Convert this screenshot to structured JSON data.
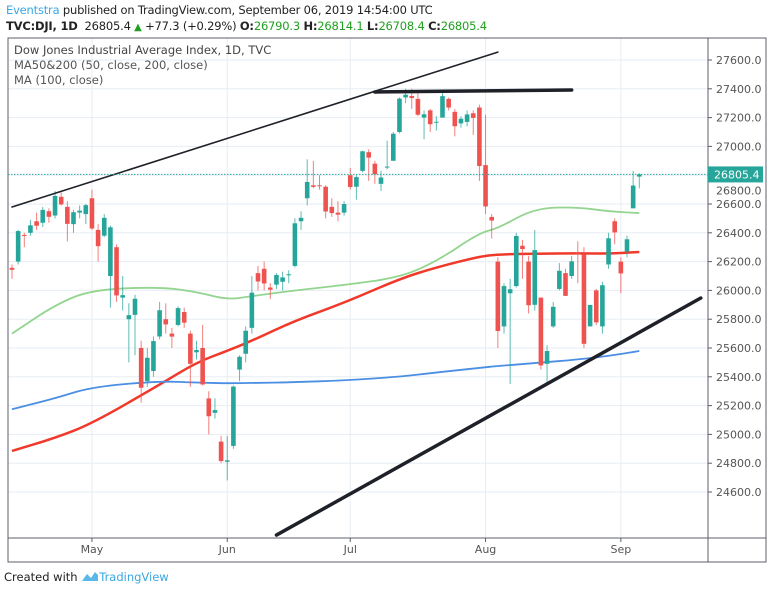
{
  "header": {
    "author": "Eventstra",
    "published": "published on TradingView.com, September 06, 2019 14:54:00 UTC",
    "symbol": "TVC:DJI, 1D",
    "last": "26805.4",
    "change": "+77.3 (+0.29%)",
    "o_label": "O:",
    "o": "26790.3",
    "h_label": "H:",
    "h": "26814.1",
    "l_label": "L:",
    "l": "26708.4",
    "c_label": "C:",
    "c": "26805.4"
  },
  "legend": {
    "title": "Dow Jones Industrial Average Index, 1D, TVC",
    "ma1": "MA50&200 (50, close, 200, close)",
    "ma2": "MA (100, close)"
  },
  "footer": {
    "created": "Created with",
    "brand": "TradingView"
  },
  "colors": {
    "up": "#26a69a",
    "down": "#ef5350",
    "ma50": "#93d48f",
    "ma100": "#f0392b",
    "ma200": "#4a8fe3",
    "drawing": "#1f2128",
    "last_price": "#26a69a",
    "grid": "#e6edf3"
  },
  "chart_data": {
    "type": "candlestick",
    "title": "Dow Jones Industrial Average Index, 1D, TVC",
    "ylim": [
      24600,
      27600
    ],
    "yticks": [
      24600,
      24800,
      25000,
      25200,
      25400,
      25600,
      25800,
      26000,
      26200,
      26400,
      26600,
      26800,
      27000,
      27200,
      27400,
      27600
    ],
    "ytick_labels": [
      "24600.0",
      "24800.0",
      "25000.0",
      "25200.0",
      "25400.0",
      "25600.0",
      "25800.0",
      "26000.0",
      "26200.0",
      "26400.0",
      "26600.0",
      "26800.0",
      "27000.0",
      "27200.0",
      "27400.0",
      "27600.0"
    ],
    "xticks": [
      {
        "label": "May",
        "date": "2019-05-01"
      },
      {
        "label": "Jun",
        "date": "2019-06-03"
      },
      {
        "label": "Jul",
        "date": "2019-07-01"
      },
      {
        "label": "Aug",
        "date": "2019-08-01"
      },
      {
        "label": "Sep",
        "date": "2019-09-03"
      }
    ],
    "grid": true,
    "last_price": 26805.4,
    "last_price_label": "26805.4",
    "candles_columns": [
      "date",
      "open",
      "high",
      "low",
      "close"
    ],
    "candles": [
      [
        "2019-04-11",
        26157,
        26180,
        26080,
        26143
      ],
      [
        "2019-04-12",
        26200,
        26420,
        26180,
        26412
      ],
      [
        "2019-04-15",
        26385,
        26400,
        26300,
        26384
      ],
      [
        "2019-04-16",
        26400,
        26490,
        26380,
        26452
      ],
      [
        "2019-04-17",
        26480,
        26540,
        26420,
        26449
      ],
      [
        "2019-04-18",
        26470,
        26580,
        26440,
        26559
      ],
      [
        "2019-04-22",
        26550,
        26570,
        26470,
        26511
      ],
      [
        "2019-04-23",
        26520,
        26690,
        26500,
        26656
      ],
      [
        "2019-04-24",
        26650,
        26680,
        26590,
        26597
      ],
      [
        "2019-04-25",
        26580,
        26620,
        26340,
        26462
      ],
      [
        "2019-04-26",
        26460,
        26560,
        26400,
        26543
      ],
      [
        "2019-04-29",
        26540,
        26590,
        26500,
        26554
      ],
      [
        "2019-04-30",
        26530,
        26600,
        26460,
        26592
      ],
      [
        "2019-05-01",
        26640,
        26700,
        26420,
        26430
      ],
      [
        "2019-05-02",
        26420,
        26460,
        26200,
        26307
      ],
      [
        "2019-05-03",
        26380,
        26530,
        26370,
        26504
      ],
      [
        "2019-05-06",
        26100,
        26450,
        25880,
        26438
      ],
      [
        "2019-05-07",
        26300,
        26320,
        25920,
        25965
      ],
      [
        "2019-05-08",
        25950,
        26100,
        25860,
        25967
      ],
      [
        "2019-05-09",
        25800,
        25910,
        25500,
        25828
      ],
      [
        "2019-05-10",
        25830,
        25970,
        25550,
        25942
      ],
      [
        "2019-05-13",
        25600,
        25650,
        25220,
        25324
      ],
      [
        "2019-05-14",
        25370,
        25600,
        25330,
        25532
      ],
      [
        "2019-05-15",
        25440,
        25680,
        25400,
        25648
      ],
      [
        "2019-05-16",
        25680,
        25920,
        25660,
        25862
      ],
      [
        "2019-05-17",
        25800,
        25910,
        25700,
        25764
      ],
      [
        "2019-05-20",
        25700,
        25740,
        25600,
        25679
      ],
      [
        "2019-05-21",
        25760,
        25890,
        25750,
        25877
      ],
      [
        "2019-05-22",
        25850,
        25880,
        25740,
        25776
      ],
      [
        "2019-05-23",
        25700,
        25720,
        25330,
        25490
      ],
      [
        "2019-05-24",
        25570,
        25650,
        25520,
        25586
      ],
      [
        "2019-05-28",
        25600,
        25760,
        25340,
        25347
      ],
      [
        "2019-05-29",
        25250,
        25300,
        25000,
        25126
      ],
      [
        "2019-05-30",
        25150,
        25250,
        25110,
        25169
      ],
      [
        "2019-05-31",
        24950,
        24990,
        24800,
        24815
      ],
      [
        "2019-06-03",
        24810,
        24990,
        24680,
        24820
      ],
      [
        "2019-06-04",
        24920,
        25340,
        24900,
        25332
      ],
      [
        "2019-06-05",
        25450,
        25550,
        25370,
        25539
      ],
      [
        "2019-06-06",
        25560,
        25750,
        25500,
        25720
      ],
      [
        "2019-06-07",
        25740,
        26100,
        25700,
        25984
      ],
      [
        "2019-06-10",
        26120,
        26170,
        26000,
        26062
      ],
      [
        "2019-06-11",
        26150,
        26200,
        26000,
        26048
      ],
      [
        "2019-06-12",
        26020,
        26050,
        25940,
        26005
      ],
      [
        "2019-06-13",
        26040,
        26120,
        26010,
        26107
      ],
      [
        "2019-06-14",
        26060,
        26130,
        26000,
        26090
      ],
      [
        "2019-06-17",
        26110,
        26140,
        26050,
        26112
      ],
      [
        "2019-06-18",
        26170,
        26500,
        26160,
        26466
      ],
      [
        "2019-06-19",
        26480,
        26550,
        26420,
        26504
      ],
      [
        "2019-06-20",
        26640,
        26910,
        26590,
        26753
      ],
      [
        "2019-06-21",
        26730,
        26900,
        26710,
        26719
      ],
      [
        "2019-06-24",
        26730,
        26800,
        26700,
        26727
      ],
      [
        "2019-06-25",
        26720,
        26730,
        26500,
        26548
      ],
      [
        "2019-06-26",
        26580,
        26640,
        26510,
        26537
      ],
      [
        "2019-06-27",
        26540,
        26620,
        26480,
        26526
      ],
      [
        "2019-06-28",
        26540,
        26620,
        26520,
        26600
      ],
      [
        "2019-07-01",
        26800,
        26850,
        26700,
        26718
      ],
      [
        "2019-07-02",
        26720,
        26800,
        26630,
        26787
      ],
      [
        "2019-07-03",
        26830,
        26970,
        26820,
        26966
      ],
      [
        "2019-07-05",
        26960,
        26980,
        26760,
        26922
      ],
      [
        "2019-07-08",
        26880,
        26900,
        26740,
        26806
      ],
      [
        "2019-07-09",
        26740,
        26830,
        26690,
        26784
      ],
      [
        "2019-07-10",
        26860,
        27040,
        26840,
        26860
      ],
      [
        "2019-07-11",
        26900,
        27100,
        26900,
        27088
      ],
      [
        "2019-07-12",
        27100,
        27340,
        27090,
        27332
      ],
      [
        "2019-07-15",
        27340,
        27400,
        27300,
        27359
      ],
      [
        "2019-07-16",
        27350,
        27400,
        27260,
        27336
      ],
      [
        "2019-07-17",
        27330,
        27380,
        27210,
        27220
      ],
      [
        "2019-07-18",
        27200,
        27250,
        27050,
        27223
      ],
      [
        "2019-07-19",
        27250,
        27260,
        27100,
        27154
      ],
      [
        "2019-07-22",
        27170,
        27210,
        27110,
        27171
      ],
      [
        "2019-07-23",
        27200,
        27370,
        27200,
        27349
      ],
      [
        "2019-07-24",
        27330,
        27340,
        27250,
        27270
      ],
      [
        "2019-07-25",
        27240,
        27260,
        27070,
        27140
      ],
      [
        "2019-07-26",
        27160,
        27210,
        27130,
        27192
      ],
      [
        "2019-07-29",
        27170,
        27250,
        27140,
        27222
      ],
      [
        "2019-07-30",
        27230,
        27250,
        27080,
        27198
      ],
      [
        "2019-07-31",
        27270,
        27290,
        26760,
        26864
      ],
      [
        "2019-08-01",
        26870,
        27220,
        26530,
        26583
      ],
      [
        "2019-08-02",
        26510,
        26530,
        26360,
        26485
      ],
      [
        "2019-08-05",
        26200,
        26230,
        25600,
        25718
      ],
      [
        "2019-08-06",
        25750,
        26050,
        25700,
        26030
      ],
      [
        "2019-08-07",
        25980,
        26080,
        25350,
        26008
      ],
      [
        "2019-08-08",
        26030,
        26400,
        26020,
        26378
      ],
      [
        "2019-08-09",
        26310,
        26350,
        26080,
        26287
      ],
      [
        "2019-08-12",
        26200,
        26240,
        25840,
        25897
      ],
      [
        "2019-08-13",
        25900,
        26420,
        25860,
        26280
      ],
      [
        "2019-08-14",
        25950,
        25950,
        25450,
        25479
      ],
      [
        "2019-08-15",
        25490,
        25620,
        25360,
        25579
      ],
      [
        "2019-08-16",
        25750,
        25920,
        25740,
        25886
      ],
      [
        "2019-08-19",
        26010,
        26190,
        26000,
        26136
      ],
      [
        "2019-08-20",
        26120,
        26150,
        25960,
        25962
      ],
      [
        "2019-08-21",
        26100,
        26240,
        26080,
        26202
      ],
      [
        "2019-08-22",
        26260,
        26340,
        26050,
        26252
      ],
      [
        "2019-08-23",
        26250,
        26300,
        25600,
        25629
      ],
      [
        "2019-08-26",
        25750,
        25900,
        25750,
        25899
      ],
      [
        "2019-08-27",
        26000,
        26010,
        25760,
        25778
      ],
      [
        "2019-08-28",
        25750,
        26060,
        25700,
        26036
      ],
      [
        "2019-08-29",
        26180,
        26400,
        26150,
        26362
      ],
      [
        "2019-08-30",
        26480,
        26500,
        26320,
        26403
      ],
      [
        "2019-09-03",
        26200,
        26230,
        25980,
        26118
      ],
      [
        "2019-09-04",
        26270,
        26380,
        26230,
        26355
      ],
      [
        "2019-09-05",
        26570,
        26830,
        26570,
        26728
      ],
      [
        "2019-09-06",
        26790.3,
        26814.1,
        26708.4,
        26805.4
      ]
    ],
    "series": [
      {
        "name": "MA50",
        "color_key": "ma50",
        "points": [
          [
            "2019-04-11",
            25700
          ],
          [
            "2019-04-23",
            25900
          ],
          [
            "2019-05-01",
            26005
          ],
          [
            "2019-05-16",
            26024
          ],
          [
            "2019-05-24",
            25990
          ],
          [
            "2019-06-03",
            25935
          ],
          [
            "2019-06-07",
            25960
          ],
          [
            "2019-06-18",
            26000
          ],
          [
            "2019-06-28",
            26037
          ],
          [
            "2019-07-12",
            26090
          ],
          [
            "2019-07-22",
            26200
          ],
          [
            "2019-07-31",
            26400
          ],
          [
            "2019-08-05",
            26430
          ],
          [
            "2019-08-13",
            26572
          ],
          [
            "2019-08-22",
            26578
          ],
          [
            "2019-08-29",
            26548
          ],
          [
            "2019-09-06",
            26537
          ]
        ]
      },
      {
        "name": "MA100",
        "color_key": "ma100",
        "points": [
          [
            "2019-04-11",
            24885
          ],
          [
            "2019-04-23",
            24975
          ],
          [
            "2019-05-01",
            25075
          ],
          [
            "2019-05-16",
            25345
          ],
          [
            "2019-05-24",
            25500
          ],
          [
            "2019-06-03",
            25580
          ],
          [
            "2019-06-07",
            25650
          ],
          [
            "2019-06-18",
            25790
          ],
          [
            "2019-06-28",
            25913
          ],
          [
            "2019-07-12",
            26080
          ],
          [
            "2019-07-22",
            26160
          ],
          [
            "2019-07-31",
            26235
          ],
          [
            "2019-08-05",
            26250
          ],
          [
            "2019-08-13",
            26255
          ],
          [
            "2019-08-22",
            26258
          ],
          [
            "2019-08-29",
            26255
          ],
          [
            "2019-09-06",
            26267
          ]
        ]
      },
      {
        "name": "MA200",
        "color_key": "ma200",
        "points": [
          [
            "2019-04-11",
            25175
          ],
          [
            "2019-04-23",
            25250
          ],
          [
            "2019-05-01",
            25330
          ],
          [
            "2019-05-16",
            25370
          ],
          [
            "2019-05-24",
            25360
          ],
          [
            "2019-06-03",
            25355
          ],
          [
            "2019-06-07",
            25357
          ],
          [
            "2019-06-18",
            25362
          ],
          [
            "2019-06-28",
            25375
          ],
          [
            "2019-07-12",
            25400
          ],
          [
            "2019-07-22",
            25430
          ],
          [
            "2019-07-31",
            25462
          ],
          [
            "2019-08-05",
            25475
          ],
          [
            "2019-08-13",
            25495
          ],
          [
            "2019-08-22",
            25520
          ],
          [
            "2019-08-29",
            25545
          ],
          [
            "2019-09-06",
            25579
          ]
        ]
      }
    ],
    "drawings": [
      {
        "kind": "trendline",
        "from": [
          "2019-04-11",
          26579
        ],
        "to": [
          "2019-08-05",
          27655
        ],
        "weight": "thin"
      },
      {
        "kind": "trendline",
        "from": [
          "2019-07-08",
          27378
        ],
        "to": [
          "2019-08-21",
          27392
        ],
        "weight": "thick"
      },
      {
        "kind": "trendline",
        "from": [
          "2019-06-13",
          24301
        ],
        "to": [
          "2019-09-20",
          25947
        ],
        "weight": "thick"
      }
    ]
  }
}
